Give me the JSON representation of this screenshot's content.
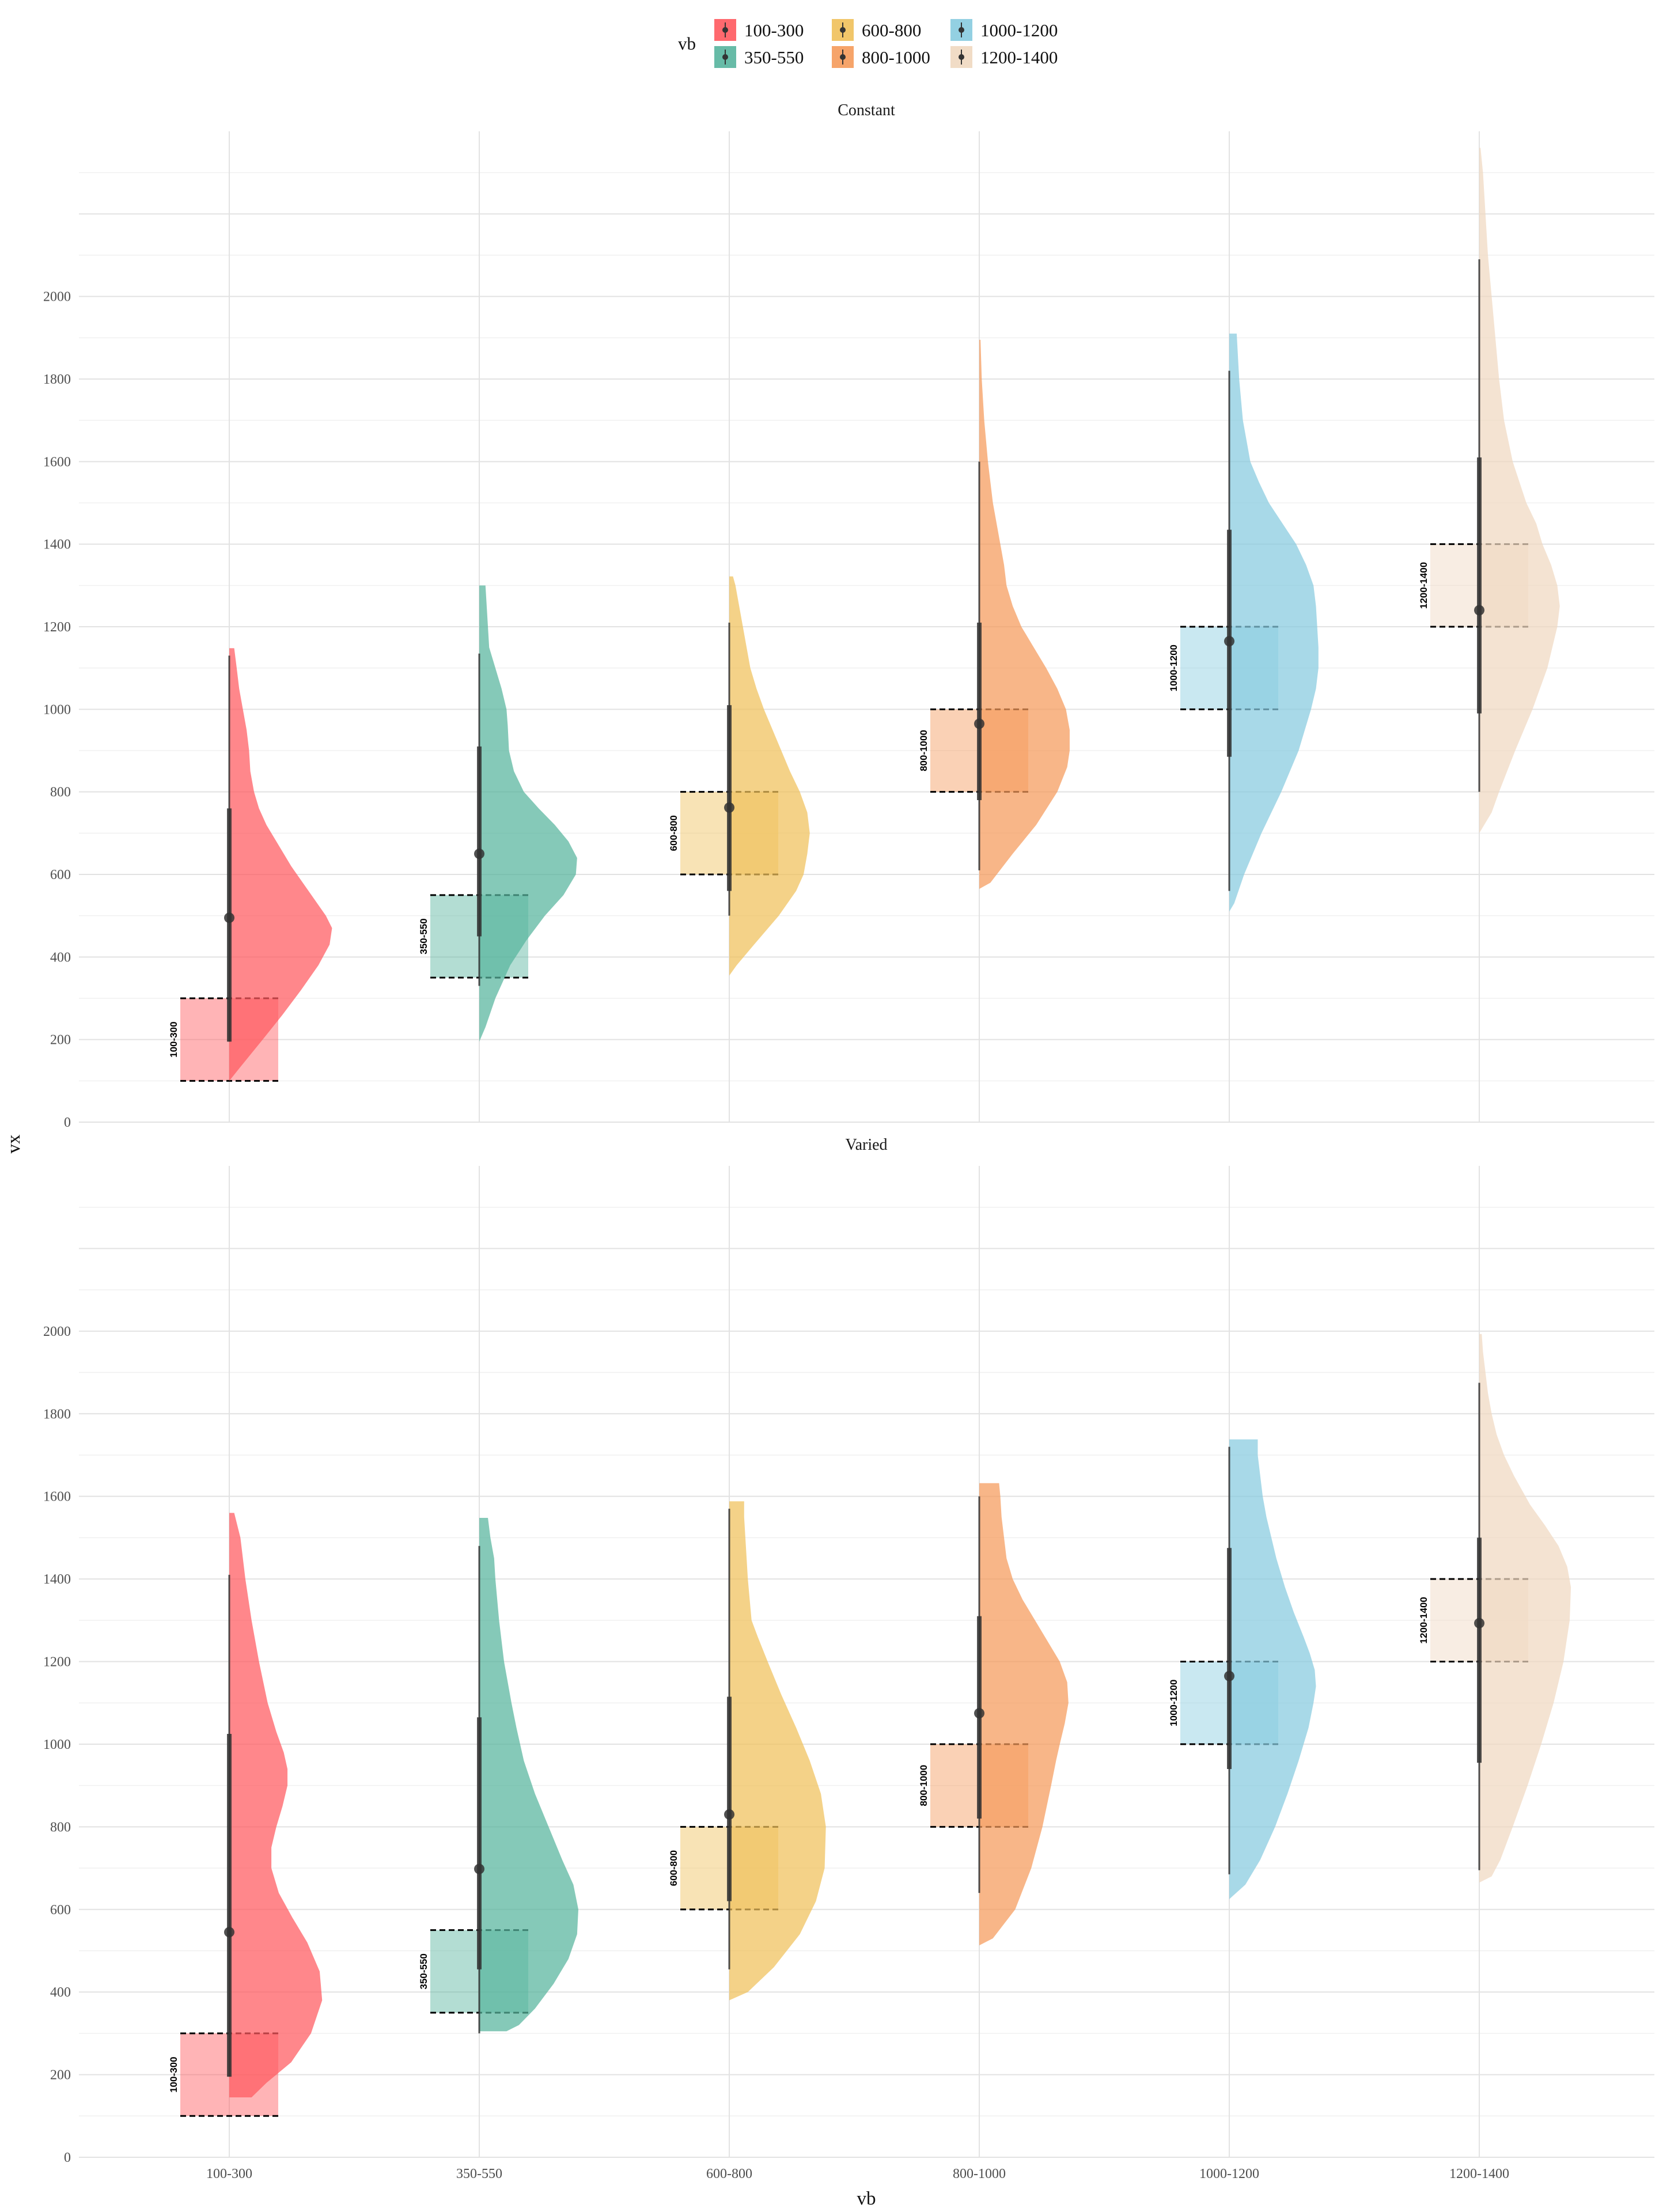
{
  "chart_data": {
    "type": "violin",
    "xlabel": "vb",
    "ylabel": "vx",
    "ylim": [
      0,
      2400
    ],
    "y_ticks": [
      0,
      200,
      400,
      600,
      800,
      1000,
      1200,
      1400,
      1600,
      1800,
      2000
    ],
    "categories": [
      "100-300",
      "350-550",
      "600-800",
      "800-1000",
      "1000-1200",
      "1200-1400"
    ],
    "colors": [
      "#ff595e",
      "#56b49d",
      "#f0c05a",
      "#f59a5a",
      "#87cbdf",
      "#f0d8c0"
    ],
    "box_label_color": "#000000",
    "grid": true,
    "legend": {
      "title": "vb",
      "position": "top",
      "entries": [
        "100-300",
        "350-550",
        "600-800",
        "800-1000",
        "1000-1200",
        "1200-1400"
      ]
    },
    "category_ranges": [
      [
        100,
        300
      ],
      [
        350,
        550
      ],
      [
        600,
        800
      ],
      [
        800,
        1000
      ],
      [
        1000,
        1200
      ],
      [
        1200,
        1400
      ]
    ],
    "facets": [
      {
        "title": "Constant",
        "series": [
          {
            "category": "100-300",
            "median": 495,
            "q1": 195,
            "q3": 760,
            "lo": 195,
            "hi": 1130,
            "violin_y": [
              100,
              130,
              200,
              260,
              320,
              380,
              430,
              470,
              500,
              560,
              620,
              680,
              720,
              760,
              800,
              850,
              900,
              950,
              1000,
              1050,
              1100,
              1148
            ],
            "violin_w": [
              0.0,
              0.08,
              0.27,
              0.43,
              0.58,
              0.72,
              0.81,
              0.83,
              0.78,
              0.64,
              0.5,
              0.38,
              0.3,
              0.24,
              0.2,
              0.17,
              0.16,
              0.14,
              0.11,
              0.08,
              0.06,
              0.04
            ]
          },
          {
            "category": "350-550",
            "median": 650,
            "q1": 450,
            "q3": 910,
            "lo": 330,
            "hi": 1135,
            "violin_y": [
              195,
              230,
              300,
              380,
              440,
              500,
              550,
              600,
              640,
              680,
              720,
              760,
              800,
              850,
              900,
              960,
              1000,
              1050,
              1100,
              1150,
              1200,
              1250,
              1300
            ],
            "violin_w": [
              0.0,
              0.05,
              0.13,
              0.25,
              0.38,
              0.53,
              0.68,
              0.78,
              0.79,
              0.72,
              0.61,
              0.48,
              0.36,
              0.28,
              0.24,
              0.23,
              0.22,
              0.18,
              0.13,
              0.08,
              0.07,
              0.06,
              0.05
            ]
          },
          {
            "category": "600-800",
            "median": 762,
            "q1": 560,
            "q3": 1010,
            "lo": 500,
            "hi": 1210,
            "violin_y": [
              355,
              380,
              430,
              500,
              560,
              600,
              650,
              700,
              750,
              800,
              850,
              900,
              950,
              1000,
              1050,
              1100,
              1150,
              1200,
              1250,
              1300,
              1322
            ],
            "violin_w": [
              0.0,
              0.06,
              0.2,
              0.4,
              0.54,
              0.6,
              0.63,
              0.65,
              0.63,
              0.57,
              0.49,
              0.42,
              0.35,
              0.28,
              0.22,
              0.17,
              0.14,
              0.11,
              0.08,
              0.05,
              0.03
            ]
          },
          {
            "category": "800-1000",
            "median": 965,
            "q1": 780,
            "q3": 1210,
            "lo": 610,
            "hi": 1600,
            "violin_y": [
              565,
              580,
              650,
              720,
              800,
              860,
              900,
              950,
              1000,
              1050,
              1100,
              1150,
              1200,
              1250,
              1300,
              1350,
              1400,
              1450,
              1500,
              1600,
              1700,
              1800,
              1895
            ],
            "violin_w": [
              0.0,
              0.09,
              0.27,
              0.46,
              0.63,
              0.71,
              0.73,
              0.73,
              0.7,
              0.63,
              0.54,
              0.44,
              0.34,
              0.27,
              0.22,
              0.2,
              0.17,
              0.14,
              0.11,
              0.07,
              0.04,
              0.02,
              0.01
            ]
          },
          {
            "category": "1000-1200",
            "median": 1165,
            "q1": 885,
            "q3": 1435,
            "lo": 560,
            "hi": 1820,
            "violin_y": [
              510,
              530,
              600,
              700,
              800,
              900,
              1000,
              1050,
              1100,
              1150,
              1200,
              1250,
              1300,
              1350,
              1400,
              1450,
              1500,
              1550,
              1600,
              1700,
              1800,
              1910
            ],
            "violin_w": [
              0.0,
              0.04,
              0.12,
              0.26,
              0.42,
              0.56,
              0.66,
              0.7,
              0.72,
              0.72,
              0.71,
              0.7,
              0.68,
              0.62,
              0.54,
              0.43,
              0.32,
              0.24,
              0.17,
              0.11,
              0.08,
              0.06
            ]
          },
          {
            "category": "1200-1400",
            "median": 1240,
            "q1": 990,
            "q3": 1610,
            "lo": 800,
            "hi": 2090,
            "violin_y": [
              700,
              750,
              800,
              900,
              1000,
              1100,
              1200,
              1250,
              1300,
              1350,
              1400,
              1450,
              1500,
              1600,
              1700,
              1800,
              1900,
              2000,
              2100,
              2200,
              2300,
              2360
            ],
            "violin_w": [
              0.0,
              0.1,
              0.16,
              0.29,
              0.43,
              0.55,
              0.63,
              0.65,
              0.63,
              0.58,
              0.51,
              0.46,
              0.38,
              0.27,
              0.2,
              0.16,
              0.13,
              0.1,
              0.07,
              0.05,
              0.03,
              0.01
            ]
          }
        ]
      },
      {
        "title": "Varied",
        "series": [
          {
            "category": "100-300",
            "median": 545,
            "q1": 195,
            "q3": 1025,
            "lo": 195,
            "hi": 1410,
            "violin_y": [
              145,
              180,
              230,
              300,
              380,
              450,
              520,
              580,
              640,
              700,
              750,
              800,
              850,
              900,
              940,
              980,
              1030,
              1100,
              1200,
              1300,
              1400,
              1500,
              1560
            ],
            "violin_w": [
              0.18,
              0.3,
              0.5,
              0.66,
              0.75,
              0.73,
              0.63,
              0.51,
              0.4,
              0.34,
              0.34,
              0.38,
              0.43,
              0.47,
              0.47,
              0.44,
              0.38,
              0.31,
              0.24,
              0.18,
              0.13,
              0.09,
              0.04
            ]
          },
          {
            "category": "350-550",
            "median": 698,
            "q1": 455,
            "q3": 1065,
            "lo": 300,
            "hi": 1480,
            "violin_y": [
              305,
              320,
              360,
              420,
              480,
              540,
              600,
              660,
              720,
              800,
              880,
              960,
              1040,
              1100,
              1200,
              1300,
              1400,
              1450,
              1500,
              1548
            ],
            "violin_w": [
              0.22,
              0.32,
              0.45,
              0.6,
              0.72,
              0.79,
              0.8,
              0.76,
              0.67,
              0.56,
              0.45,
              0.36,
              0.3,
              0.26,
              0.2,
              0.16,
              0.13,
              0.12,
              0.09,
              0.07
            ]
          },
          {
            "category": "600-800",
            "median": 830,
            "q1": 620,
            "q3": 1115,
            "lo": 455,
            "hi": 1570,
            "violin_y": [
              380,
              400,
              460,
              540,
              620,
              700,
              800,
              880,
              960,
              1040,
              1120,
              1200,
              1260,
              1300,
              1400,
              1500,
              1550,
              1588
            ],
            "violin_w": [
              0.0,
              0.15,
              0.36,
              0.57,
              0.7,
              0.77,
              0.78,
              0.74,
              0.65,
              0.54,
              0.42,
              0.31,
              0.23,
              0.18,
              0.15,
              0.13,
              0.12,
              0.12
            ]
          },
          {
            "category": "800-1000",
            "median": 1075,
            "q1": 820,
            "q3": 1310,
            "lo": 640,
            "hi": 1600,
            "violin_y": [
              513,
              530,
              600,
              700,
              800,
              900,
              960,
              1000,
              1050,
              1100,
              1150,
              1200,
              1250,
              1300,
              1350,
              1400,
              1450,
              1500,
              1550,
              1600,
              1632
            ],
            "violin_w": [
              0.0,
              0.11,
              0.29,
              0.42,
              0.51,
              0.58,
              0.62,
              0.65,
              0.69,
              0.72,
              0.71,
              0.65,
              0.55,
              0.45,
              0.35,
              0.27,
              0.22,
              0.2,
              0.18,
              0.17,
              0.16
            ]
          },
          {
            "category": "1000-1200",
            "median": 1165,
            "q1": 940,
            "q3": 1475,
            "lo": 685,
            "hi": 1720,
            "violin_y": [
              625,
              660,
              720,
              800,
              880,
              960,
              1040,
              1100,
              1140,
              1180,
              1220,
              1260,
              1320,
              1380,
              1450,
              1500,
              1550,
              1600,
              1650,
              1700,
              1738
            ],
            "violin_w": [
              0.0,
              0.13,
              0.25,
              0.37,
              0.47,
              0.56,
              0.64,
              0.68,
              0.7,
              0.69,
              0.65,
              0.6,
              0.52,
              0.45,
              0.38,
              0.34,
              0.3,
              0.27,
              0.25,
              0.23,
              0.23
            ]
          },
          {
            "category": "1200-1400",
            "median": 1293,
            "q1": 955,
            "q3": 1500,
            "lo": 695,
            "hi": 1875,
            "violin_y": [
              665,
              680,
              720,
              800,
              900,
              1000,
              1100,
              1200,
              1300,
              1380,
              1430,
              1480,
              1530,
              1580,
              1650,
              1700,
              1750,
              1800,
              1850,
              1900,
              1950,
              1993
            ],
            "violin_w": [
              0.0,
              0.1,
              0.17,
              0.27,
              0.39,
              0.5,
              0.6,
              0.68,
              0.73,
              0.74,
              0.71,
              0.64,
              0.53,
              0.41,
              0.28,
              0.2,
              0.14,
              0.1,
              0.07,
              0.05,
              0.03,
              0.02
            ]
          }
        ]
      }
    ]
  }
}
